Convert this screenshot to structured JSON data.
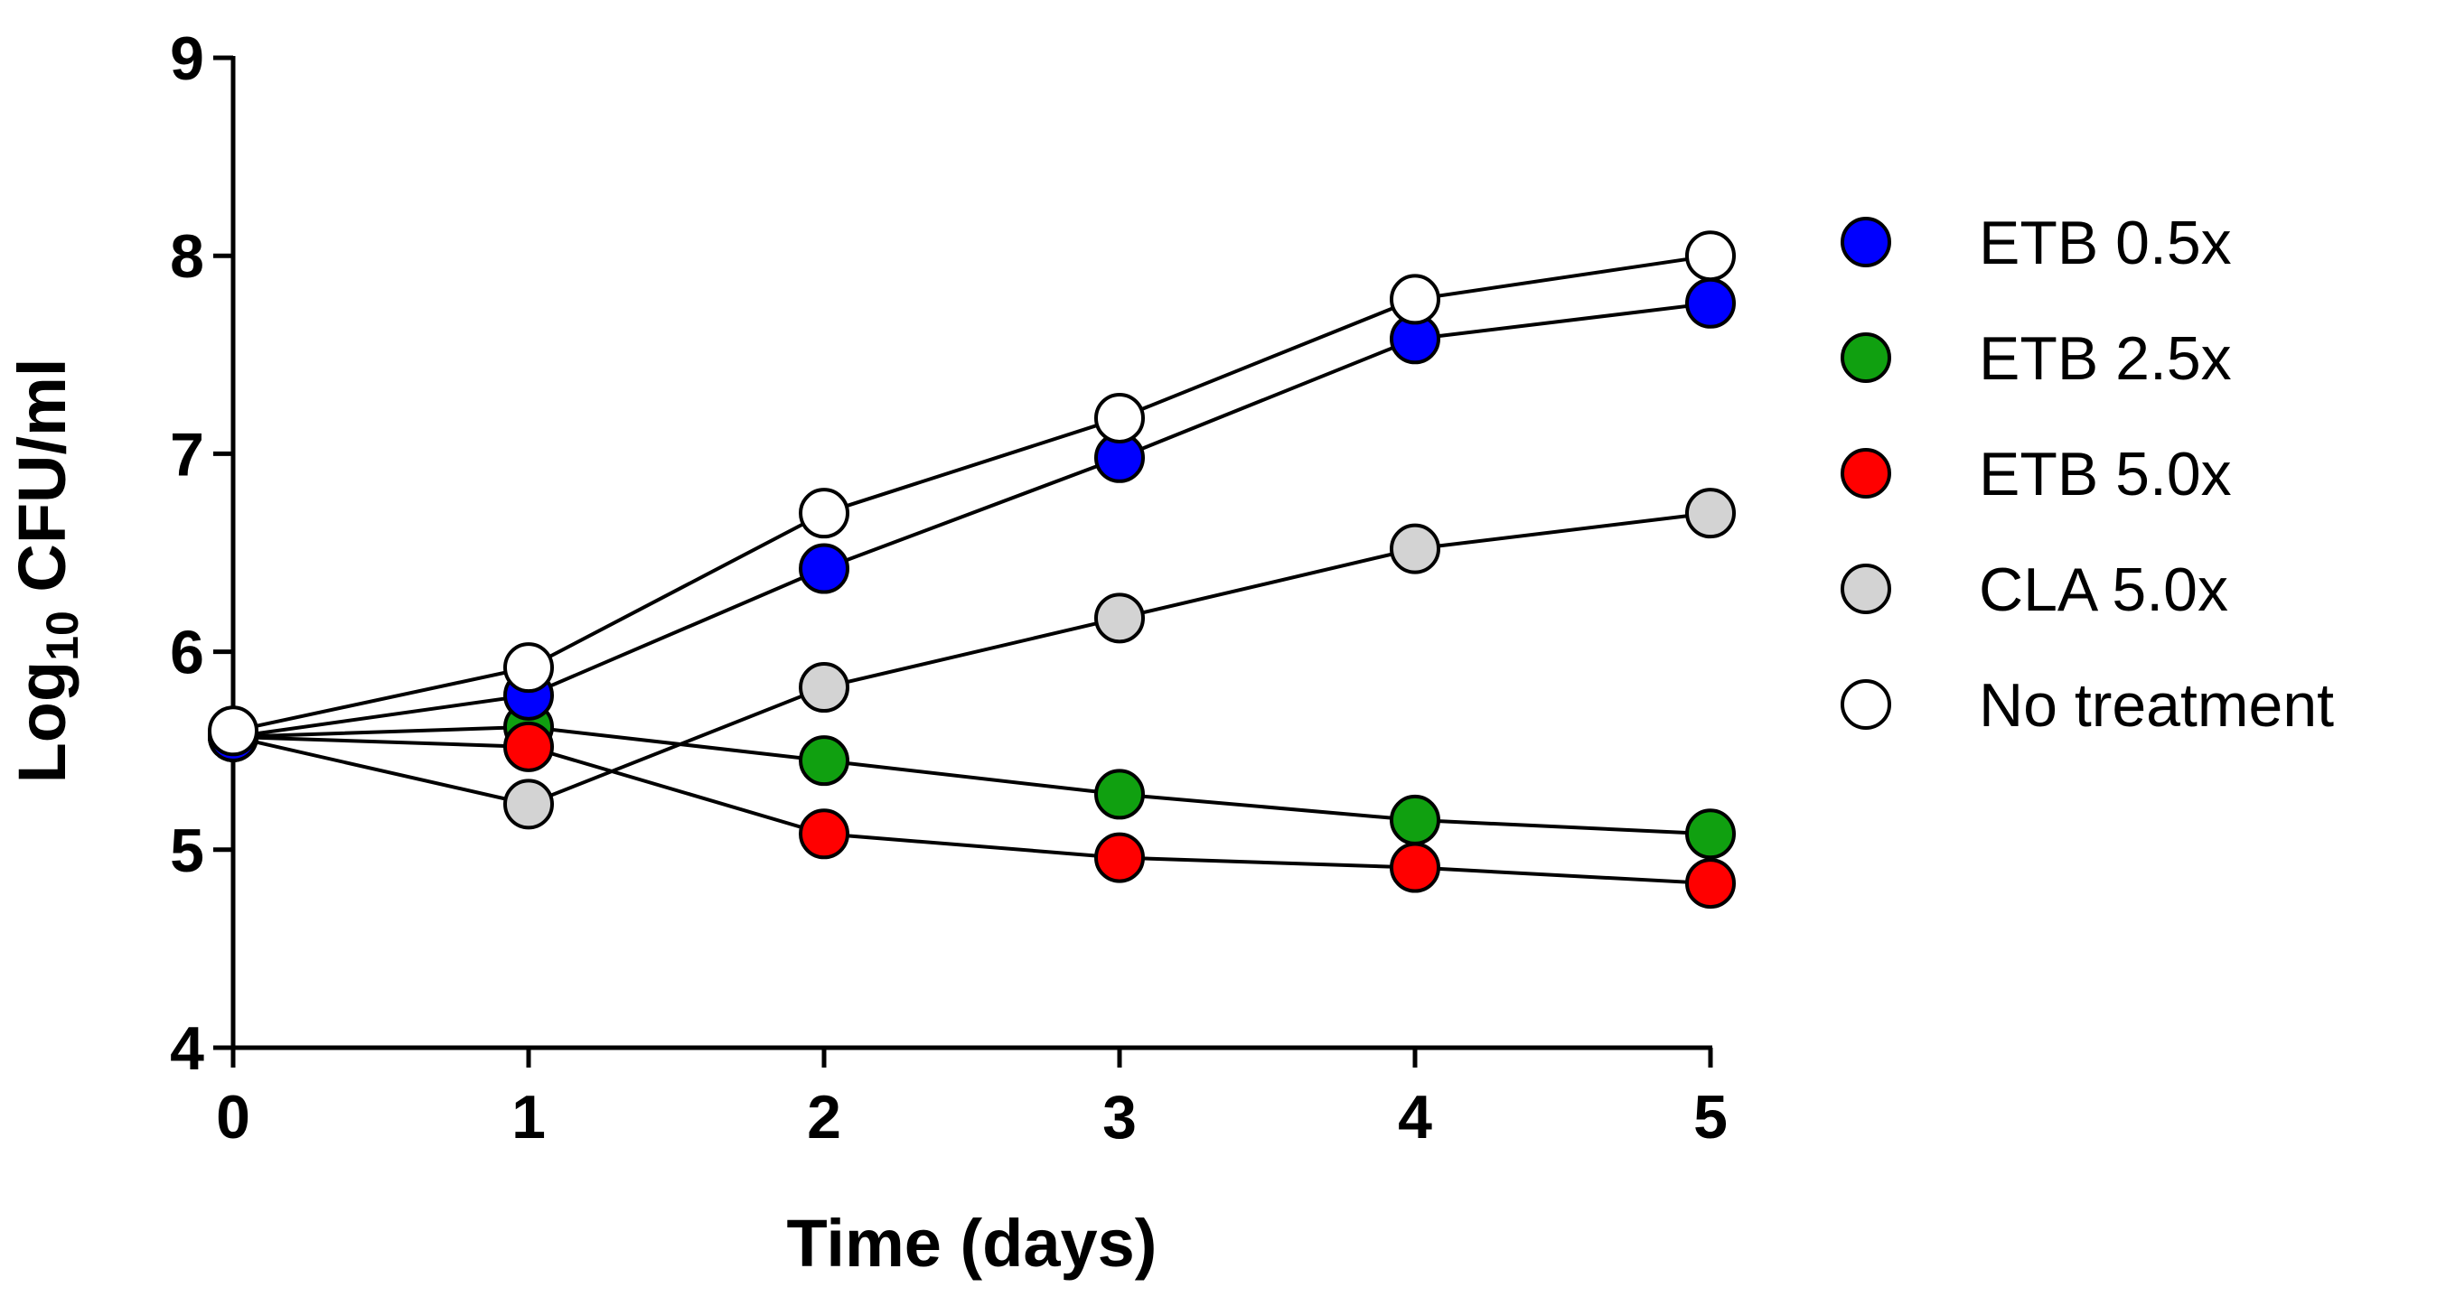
{
  "chart_data": {
    "type": "line",
    "title": "",
    "xlabel": "Time (days)",
    "ylabel_main": "Log",
    "ylabel_sub": "10",
    "ylabel_rest": " CFU/ml",
    "x": [
      0,
      1,
      2,
      3,
      4,
      5
    ],
    "xlim": [
      0,
      5
    ],
    "ylim": [
      4,
      9
    ],
    "xticks": [
      "0",
      "1",
      "2",
      "3",
      "4",
      "5"
    ],
    "yticks": [
      "4",
      "5",
      "6",
      "7",
      "8",
      "9"
    ],
    "legend_position": "right",
    "series": [
      {
        "name": "CLA 5.0x",
        "color": "#d3d3d3",
        "values": [
          5.57,
          5.23,
          5.82,
          6.17,
          6.52,
          6.7
        ]
      },
      {
        "name": "ETB 2.5x",
        "color": "#10a010",
        "values": [
          5.57,
          5.62,
          5.45,
          5.28,
          5.15,
          5.08
        ]
      },
      {
        "name": "ETB 5.0x",
        "color": "#ff0000",
        "values": [
          5.57,
          5.52,
          5.08,
          4.96,
          4.91,
          4.83
        ]
      },
      {
        "name": "ETB 0.5x",
        "color": "#0000ff",
        "values": [
          5.57,
          5.78,
          6.42,
          6.98,
          7.58,
          7.76
        ]
      },
      {
        "name": "No treatment",
        "color": "#ffffff",
        "values": [
          5.6,
          5.92,
          6.7,
          7.18,
          7.78,
          8.0
        ]
      }
    ],
    "legend_order": [
      "ETB 0.5x",
      "ETB 2.5x",
      "ETB 5.0x",
      "CLA 5.0x",
      "No treatment"
    ]
  }
}
